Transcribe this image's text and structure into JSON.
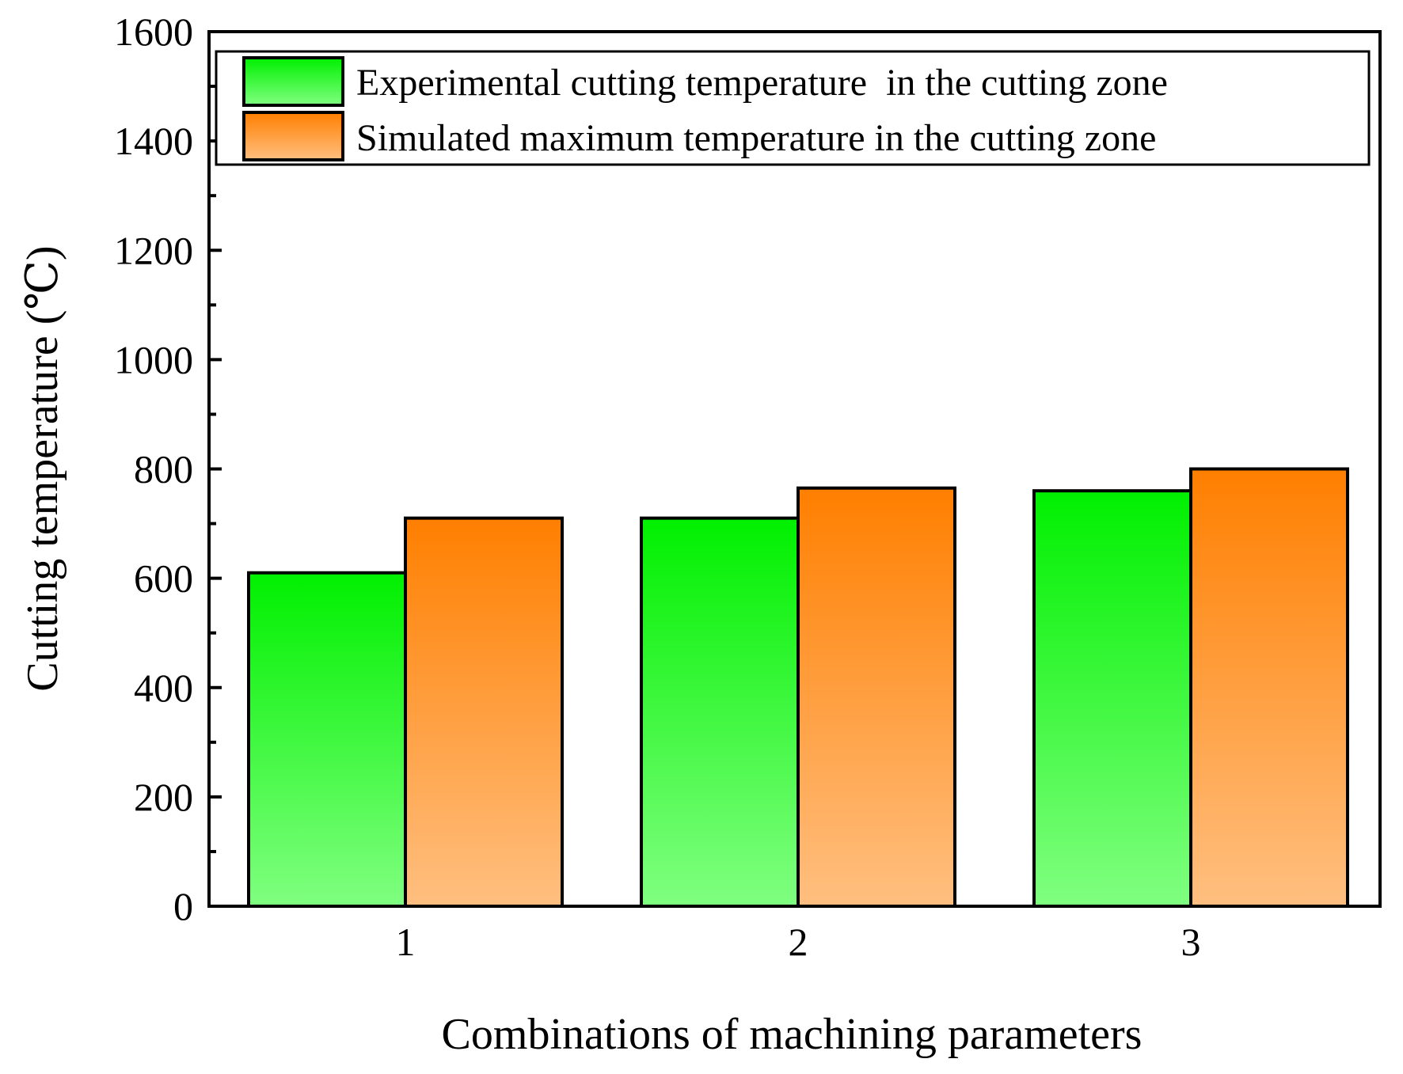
{
  "chart_data": {
    "type": "bar",
    "title": "",
    "xlabel": "Combinations of machining parameters",
    "ylabel": "Cutting temperature (℃)",
    "categories": [
      "1",
      "2",
      "3"
    ],
    "ylim": [
      0,
      1600
    ],
    "yticks": [
      0,
      200,
      400,
      600,
      800,
      1000,
      1200,
      1400,
      1600
    ],
    "grid": false,
    "legend_position": "top",
    "series": [
      {
        "name": "Experimental cutting temperature  in the cutting zone",
        "values": [
          610,
          710,
          760
        ],
        "color_top": "#00f000",
        "color_bottom": "#80ff80"
      },
      {
        "name": "Simulated maximum temperature in the cutting zone",
        "values": [
          710,
          765,
          800
        ],
        "color_top": "#ff7f00",
        "color_bottom": "#ffbf80"
      }
    ]
  }
}
